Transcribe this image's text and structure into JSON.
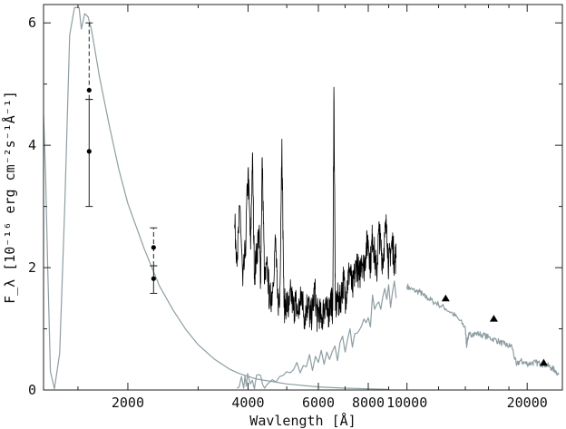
{
  "chart_data": {
    "type": "line",
    "title": "",
    "xlabel": "Wavlength [Å]",
    "ylabel": "F_λ [10⁻¹⁶ erg cm⁻²s⁻¹Å⁻¹]",
    "x_scale": "log",
    "xlim": [
      1230,
      24500
    ],
    "ylim": [
      0,
      6.3
    ],
    "grid": false,
    "legend": "none",
    "x_ticks": [
      {
        "value": 2000,
        "label": "2000"
      },
      {
        "value": 4000,
        "label": "4000"
      },
      {
        "value": 6000,
        "label": "6000"
      },
      {
        "value": 8000,
        "label": "8000"
      },
      {
        "value": 10000,
        "label": "10000"
      },
      {
        "value": 20000,
        "label": "20000"
      }
    ],
    "x_minor_ticks": [
      1500,
      3000,
      5000,
      7000,
      9000,
      12000,
      14000,
      16000,
      18000
    ],
    "y_ticks": [
      {
        "value": 0,
        "label": "0"
      },
      {
        "value": 2,
        "label": "2"
      },
      {
        "value": 4,
        "label": "4"
      },
      {
        "value": 6,
        "label": "6"
      }
    ],
    "y_minor_ticks": [
      1,
      3,
      5
    ],
    "colors": {
      "model": "#8e9ea3",
      "observed": "#000000",
      "axes": "#222222"
    },
    "series": [
      {
        "kind": "model-uv",
        "x": [
          1230,
          1245,
          1260,
          1280,
          1310,
          1350,
          1390,
          1430,
          1470,
          1510,
          1530,
          1560,
          1590,
          1620,
          1650,
          1700,
          1800,
          1900,
          2000,
          2200,
          2400,
          2600,
          2800,
          3000,
          3300,
          3600,
          3800,
          4200,
          5000,
          6000,
          7000,
          8000,
          9000
        ],
        "y": [
          4.5,
          3.5,
          2.0,
          0.3,
          0.02,
          0.6,
          3.0,
          5.8,
          6.25,
          6.25,
          5.9,
          6.15,
          6.1,
          5.9,
          5.6,
          5.1,
          4.3,
          3.6,
          3.05,
          2.3,
          1.7,
          1.3,
          0.98,
          0.74,
          0.5,
          0.34,
          0.27,
          0.18,
          0.1,
          0.05,
          0.03,
          0.02,
          0.01
        ]
      },
      {
        "kind": "model-optical",
        "x": [
          3750,
          3800,
          3850,
          3900,
          3930,
          3960,
          3990,
          4050,
          4100,
          4150,
          4200,
          4250,
          4300,
          4350,
          4400,
          4450,
          4500,
          4550,
          4600,
          4700,
          4800,
          4900,
          5000,
          5100,
          5200,
          5300,
          5400,
          5500,
          5600,
          5700,
          5800,
          5900,
          6000,
          6100,
          6200,
          6300,
          6400,
          6500,
          6600,
          6700,
          6800,
          6900,
          7000,
          7100,
          7200,
          7300,
          7400,
          7500,
          7600,
          7700,
          7800,
          7900,
          8000,
          8100,
          8200,
          8300,
          8400,
          8500,
          8600,
          8700,
          8800,
          8900,
          9000,
          9100,
          9200,
          9300,
          9400
        ],
        "y": [
          0.03,
          0.05,
          0.22,
          0.03,
          0.23,
          0.06,
          0.27,
          0.1,
          0.16,
          0.02,
          0.24,
          0.25,
          0.24,
          0.09,
          0.03,
          0.08,
          0.11,
          0.14,
          0.17,
          0.13,
          0.22,
          0.24,
          0.3,
          0.28,
          0.33,
          0.45,
          0.28,
          0.4,
          0.38,
          0.58,
          0.32,
          0.55,
          0.45,
          0.65,
          0.42,
          0.62,
          0.5,
          0.63,
          0.72,
          0.48,
          0.78,
          0.88,
          0.62,
          0.83,
          1.0,
          0.7,
          0.92,
          0.93,
          0.98,
          1.05,
          1.16,
          1.1,
          1.18,
          1.03,
          1.55,
          1.32,
          1.4,
          1.44,
          1.32,
          1.52,
          1.66,
          1.48,
          1.72,
          1.35,
          1.6,
          1.78,
          1.5
        ]
      },
      {
        "kind": "model-nir",
        "x": [
          10000,
          10200,
          10500,
          10800,
          11000,
          11300,
          11600,
          12000,
          12500,
          13000,
          13500,
          14000,
          14100,
          14200,
          14300,
          14600,
          15000,
          15500,
          16000,
          16500,
          17000,
          17500,
          17900,
          18300,
          18800,
          19200,
          19600,
          20000,
          20500,
          21000,
          21500,
          22000,
          22500,
          23000,
          23500,
          24000
        ],
        "y": [
          1.7,
          1.65,
          1.62,
          1.6,
          1.54,
          1.5,
          1.45,
          1.4,
          1.33,
          1.25,
          1.15,
          1.02,
          0.72,
          0.85,
          0.9,
          0.92,
          0.92,
          0.9,
          0.86,
          0.83,
          0.79,
          0.75,
          0.72,
          0.72,
          0.4,
          0.48,
          0.45,
          0.43,
          0.44,
          0.45,
          0.43,
          0.42,
          0.4,
          0.36,
          0.32,
          0.25
        ]
      },
      {
        "kind": "observed-spectrum",
        "x": [
          3700,
          3760,
          3820,
          3880,
          3940,
          4000,
          4060,
          4102,
          4150,
          4200,
          4260,
          4300,
          4341,
          4400,
          4471,
          4530,
          4600,
          4686,
          4740,
          4800,
          4861,
          4920,
          5000,
          5060,
          5120,
          5200,
          5260,
          5320,
          5400,
          5460,
          5520,
          5600,
          5660,
          5720,
          5800,
          5876,
          5950,
          6020,
          6100,
          6180,
          6250,
          6320,
          6400,
          6460,
          6520,
          6563,
          6620,
          6700,
          6780,
          6860,
          6940,
          7020,
          7100,
          7200,
          7300,
          7400,
          7500,
          7600,
          7700,
          7800,
          7900,
          8000,
          8100,
          8200,
          8300,
          8400,
          8500,
          8600,
          8700,
          8800,
          8900,
          9000,
          9100,
          9200,
          9300,
          9400
        ],
        "y": [
          2.7,
          2.2,
          3.0,
          1.7,
          2.3,
          3.6,
          2.3,
          3.85,
          1.9,
          2.2,
          2.6,
          1.8,
          3.8,
          1.75,
          2.0,
          1.45,
          1.6,
          2.45,
          1.5,
          1.4,
          4.1,
          1.35,
          1.45,
          1.3,
          1.6,
          1.3,
          1.45,
          1.25,
          1.4,
          1.6,
          1.2,
          1.35,
          1.45,
          1.15,
          1.3,
          1.65,
          1.2,
          1.3,
          1.15,
          1.3,
          1.45,
          1.2,
          1.35,
          1.5,
          1.3,
          4.95,
          1.3,
          1.5,
          1.4,
          1.6,
          1.8,
          1.5,
          1.75,
          2.0,
          1.6,
          1.9,
          2.1,
          1.8,
          2.2,
          2.0,
          2.3,
          2.45,
          2.05,
          2.55,
          2.2,
          1.9,
          2.6,
          2.35,
          2.1,
          2.5,
          2.7,
          2.0,
          2.3,
          2.4,
          2.1,
          2.2
        ]
      }
    ],
    "photometry_points": [
      {
        "x": 1600,
        "y": 4.9,
        "err_low": 4.75,
        "err_high": 6.0,
        "dashed": true
      },
      {
        "x": 1600,
        "y": 3.9,
        "err_low": 3.0,
        "err_high": 4.75,
        "dashed": false
      },
      {
        "x": 2320,
        "y": 2.33,
        "err_low": 2.03,
        "err_high": 2.65,
        "dashed": true
      },
      {
        "x": 2320,
        "y": 1.82,
        "err_low": 1.58,
        "err_high": 2.03,
        "dashed": false
      }
    ],
    "nir_triangles": [
      {
        "x": 12500,
        "y": 1.5
      },
      {
        "x": 16500,
        "y": 1.17
      },
      {
        "x": 22000,
        "y": 0.45
      }
    ]
  }
}
